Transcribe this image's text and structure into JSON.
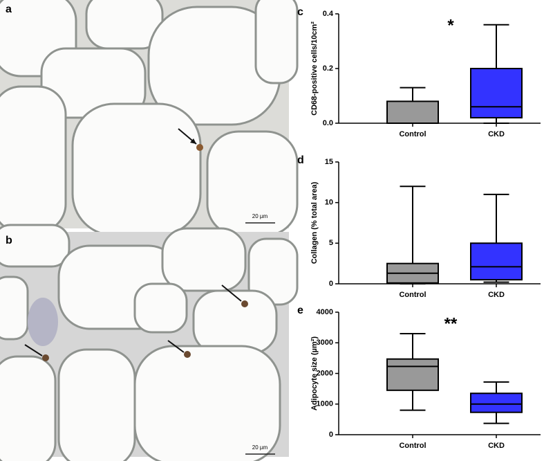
{
  "images": [
    {
      "label": "a",
      "scale_bar": "20 µm"
    },
    {
      "label": "b",
      "scale_bar": "20 µm"
    }
  ],
  "chart_data": [
    {
      "type": "box",
      "panel": "c",
      "ylabel": "CD68-positive cells/10cm²",
      "annotation": "*",
      "categories": [
        "Control",
        "CKD"
      ],
      "boxes": [
        {
          "min": 0,
          "q1": 0,
          "median": 0,
          "q3": 0.08,
          "max": 0.13,
          "color": "#999999"
        },
        {
          "min": 0,
          "q1": 0.02,
          "median": 0.06,
          "q3": 0.2,
          "max": 0.36,
          "color": "#3333ff"
        }
      ],
      "ylim": [
        0,
        0.4
      ],
      "yticks": [
        {
          "value": 0,
          "label": "0.0"
        },
        0.2,
        0.4
      ]
    },
    {
      "type": "box",
      "panel": "d",
      "ylabel": "Collagen (% total area)",
      "categories": [
        "Control",
        "CKD"
      ],
      "boxes": [
        {
          "min": 0,
          "q1": 0.1,
          "median": 1.3,
          "q3": 2.5,
          "max": 12,
          "color": "#999999"
        },
        {
          "min": 0.2,
          "q1": 0.5,
          "median": 2.1,
          "q3": 5,
          "max": 11,
          "color": "#3333ff"
        }
      ],
      "ylim": [
        0,
        15
      ],
      "yticks": [
        0,
        5,
        10,
        15
      ]
    },
    {
      "type": "box",
      "panel": "e",
      "ylabel": "Adipocyte size (µm²)",
      "annotation": "**",
      "categories": [
        "Control",
        "CKD"
      ],
      "boxes": [
        {
          "min": 800,
          "q1": 1450,
          "median": 2230,
          "q3": 2470,
          "max": 3300,
          "color": "#999999"
        },
        {
          "min": 370,
          "q1": 730,
          "median": 1000,
          "q3": 1350,
          "max": 1720,
          "color": "#3333ff"
        }
      ],
      "ylim": [
        0,
        4000
      ],
      "yticks": [
        0,
        1000,
        2000,
        3000,
        4000
      ]
    }
  ]
}
